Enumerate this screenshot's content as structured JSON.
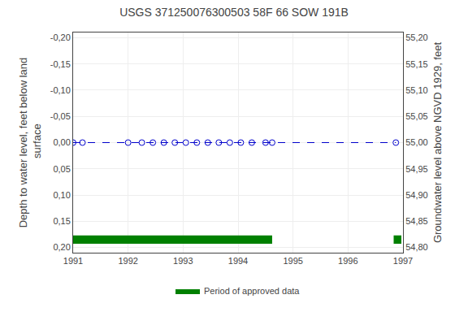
{
  "chart_data": {
    "type": "line",
    "title": "USGS 371250076300503 58F 66 SOW 191B",
    "y_label": "Depth to water level, feet below land\n surface",
    "y2_label": "Groundwater level above NGVD 1929, feet",
    "x": [
      1991.0,
      1991.17,
      1992.0,
      1992.25,
      1992.45,
      1992.65,
      1992.85,
      1993.05,
      1993.25,
      1993.45,
      1993.65,
      1993.85,
      1994.05,
      1994.25,
      1994.5,
      1994.62,
      1996.87
    ],
    "series": [
      {
        "values": [
          0.0,
          0.0,
          0.0,
          0.0,
          0.0,
          0.0,
          0.0,
          0.0,
          0.0,
          0.0,
          0.0,
          0.0,
          0.0,
          0.0,
          0.0,
          0.0,
          0.0
        ],
        "color": "#0000cc",
        "line_style": "dashed",
        "marker": "circle-open"
      }
    ],
    "periods": {
      "name": "Period of approved data",
      "color": "#008000",
      "y": 0.185,
      "half_height": 0.008,
      "ranges": [
        [
          1991.0,
          1994.62
        ],
        [
          1996.83,
          1996.97
        ]
      ]
    },
    "xlim": [
      1991.0,
      1997.0
    ],
    "xticks": [
      1991,
      1992,
      1993,
      1994,
      1995,
      1996,
      1997
    ],
    "ylim": [
      0.21,
      -0.21
    ],
    "yticks": [
      {
        "value": -0.2,
        "label": "-0,20"
      },
      {
        "value": -0.15,
        "label": "-0,15"
      },
      {
        "value": -0.1,
        "label": "-0,10"
      },
      {
        "value": -0.05,
        "label": "-0,05"
      },
      {
        "value": 0.0,
        "label": "0,00"
      },
      {
        "value": 0.05,
        "label": "0,05"
      },
      {
        "value": 0.1,
        "label": "0,10"
      },
      {
        "value": 0.15,
        "label": "0,15"
      },
      {
        "value": 0.2,
        "label": "0,20"
      }
    ],
    "y2lim": [
      54.79,
      55.21
    ],
    "y2ticks": [
      {
        "value": 55.2,
        "label": "55,20"
      },
      {
        "value": 55.15,
        "label": "55,15"
      },
      {
        "value": 55.1,
        "label": "55,10"
      },
      {
        "value": 55.05,
        "label": "55,05"
      },
      {
        "value": 55.0,
        "label": "55,00"
      },
      {
        "value": 54.95,
        "label": "54,95"
      },
      {
        "value": 54.9,
        "label": "54,90"
      },
      {
        "value": 54.85,
        "label": "54,85"
      },
      {
        "value": 54.8,
        "label": "54,80"
      }
    ],
    "grid": true,
    "legend": "bottom"
  }
}
